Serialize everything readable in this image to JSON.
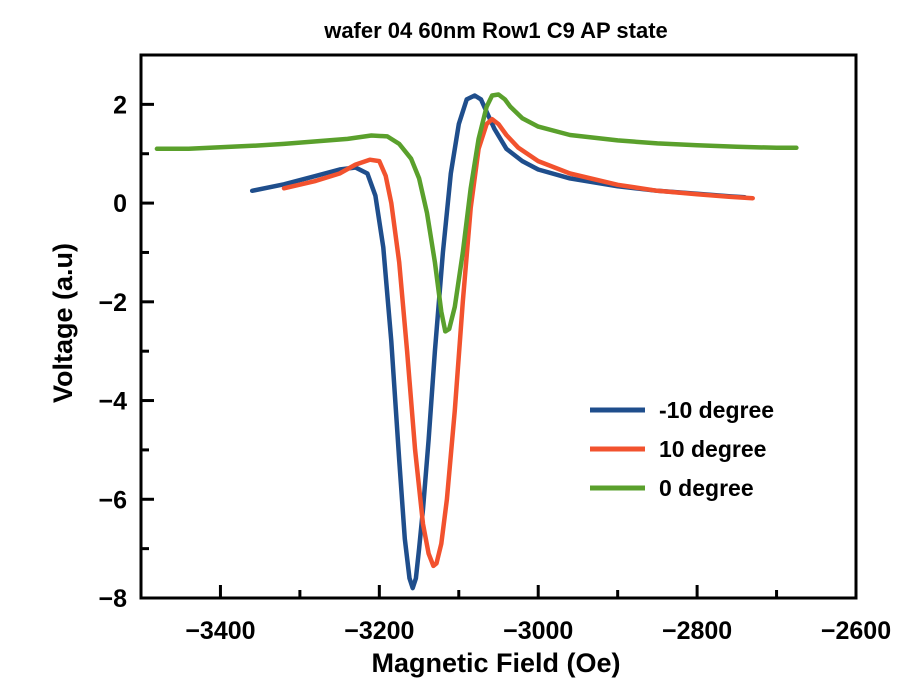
{
  "chart_data": {
    "type": "line",
    "title": "wafer 04 60nm Row1 C9 AP state",
    "xlabel": "Magnetic Field (Oe)",
    "ylabel": "Voltage (a.u)",
    "xlim": [
      -3500,
      -2600
    ],
    "ylim": [
      -8,
      3
    ],
    "xticks": [
      -3400,
      -3200,
      -3000,
      -2800,
      -2600
    ],
    "xtick_labels": [
      "−3400",
      "−3200",
      "−3000",
      "−2800",
      "−2600"
    ],
    "yticks": [
      -8,
      -6,
      -4,
      -2,
      0,
      2
    ],
    "ytick_labels": [
      "−8",
      "−6",
      "−4",
      "−2",
      "0",
      "2"
    ],
    "legend_position": "lower-right",
    "series": [
      {
        "name": "-10 degree",
        "color": "#1f4e8c",
        "x": [
          -3360,
          -3320,
          -3280,
          -3250,
          -3230,
          -3215,
          -3205,
          -3195,
          -3185,
          -3175,
          -3168,
          -3162,
          -3158,
          -3154,
          -3150,
          -3145,
          -3138,
          -3130,
          -3120,
          -3110,
          -3100,
          -3090,
          -3080,
          -3072,
          -3065,
          -3055,
          -3040,
          -3020,
          -3000,
          -2960,
          -2900,
          -2850,
          -2800,
          -2760,
          -2740
        ],
        "y": [
          0.25,
          0.38,
          0.55,
          0.68,
          0.72,
          0.6,
          0.15,
          -0.9,
          -2.8,
          -5.2,
          -6.8,
          -7.6,
          -7.8,
          -7.6,
          -7.0,
          -6.2,
          -4.8,
          -3.0,
          -1.0,
          0.6,
          1.6,
          2.1,
          2.18,
          2.1,
          1.85,
          1.5,
          1.1,
          0.85,
          0.68,
          0.5,
          0.34,
          0.25,
          0.19,
          0.14,
          0.12
        ]
      },
      {
        "name": "10 degree",
        "color": "#f2522e",
        "x": [
          -3320,
          -3280,
          -3250,
          -3230,
          -3212,
          -3200,
          -3192,
          -3185,
          -3175,
          -3165,
          -3155,
          -3145,
          -3138,
          -3132,
          -3128,
          -3122,
          -3115,
          -3105,
          -3095,
          -3085,
          -3075,
          -3065,
          -3058,
          -3050,
          -3040,
          -3025,
          -3000,
          -2960,
          -2900,
          -2850,
          -2800,
          -2760,
          -2730
        ],
        "y": [
          0.3,
          0.45,
          0.6,
          0.78,
          0.88,
          0.85,
          0.55,
          0.0,
          -1.2,
          -3.0,
          -5.0,
          -6.5,
          -7.1,
          -7.35,
          -7.3,
          -6.9,
          -6.0,
          -4.2,
          -2.0,
          -0.1,
          1.1,
          1.6,
          1.7,
          1.6,
          1.38,
          1.12,
          0.85,
          0.6,
          0.37,
          0.25,
          0.18,
          0.13,
          0.1
        ]
      },
      {
        "name": "0 degree",
        "color": "#5aa02c",
        "x": [
          -3480,
          -3440,
          -3400,
          -3360,
          -3320,
          -3280,
          -3240,
          -3210,
          -3190,
          -3175,
          -3160,
          -3150,
          -3140,
          -3130,
          -3122,
          -3117,
          -3112,
          -3105,
          -3095,
          -3085,
          -3075,
          -3065,
          -3058,
          -3050,
          -3042,
          -3035,
          -3020,
          -3000,
          -2960,
          -2900,
          -2850,
          -2800,
          -2750,
          -2700,
          -2675
        ],
        "y": [
          1.1,
          1.1,
          1.13,
          1.16,
          1.2,
          1.25,
          1.3,
          1.37,
          1.35,
          1.2,
          0.9,
          0.5,
          -0.2,
          -1.2,
          -2.2,
          -2.6,
          -2.55,
          -2.1,
          -1.0,
          0.3,
          1.3,
          1.95,
          2.18,
          2.2,
          2.1,
          1.95,
          1.72,
          1.55,
          1.38,
          1.27,
          1.21,
          1.17,
          1.14,
          1.12,
          1.12
        ]
      }
    ]
  }
}
